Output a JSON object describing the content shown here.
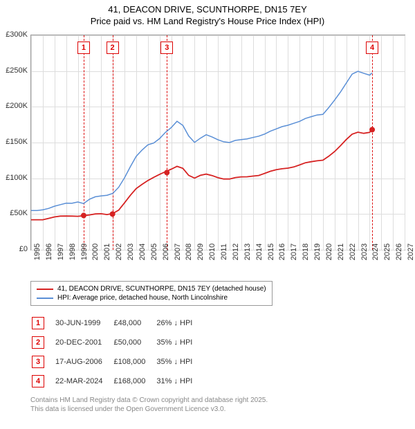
{
  "title_line1": "41, DEACON DRIVE, SCUNTHORPE, DN15 7EY",
  "title_line2": "Price paid vs. HM Land Registry's House Price Index (HPI)",
  "chart": {
    "type": "line",
    "x_min": 1995,
    "x_max": 2027,
    "y_min": 0,
    "y_max": 300000,
    "y_ticks": [
      0,
      50000,
      100000,
      150000,
      200000,
      250000,
      300000
    ],
    "y_tick_labels": [
      "£0",
      "£50K",
      "£100K",
      "£150K",
      "£200K",
      "£250K",
      "£300K"
    ],
    "x_ticks": [
      1995,
      1996,
      1997,
      1998,
      1999,
      2000,
      2001,
      2002,
      2003,
      2004,
      2005,
      2006,
      2007,
      2008,
      2009,
      2010,
      2011,
      2012,
      2013,
      2014,
      2015,
      2016,
      2017,
      2018,
      2019,
      2020,
      2021,
      2022,
      2023,
      2024,
      2025,
      2026,
      2027
    ],
    "grid_color": "#dddddd",
    "background_color": "#ffffff",
    "border_color": "#999999",
    "series": [
      {
        "name": "hpi",
        "label": "HPI: Average price, detached house, North Lincolnshire",
        "color": "#5a8fd6",
        "width": 1.5,
        "points": [
          [
            1995.0,
            55000
          ],
          [
            1995.5,
            56000
          ],
          [
            1996.0,
            57000
          ],
          [
            1996.5,
            58000
          ],
          [
            1997.0,
            60000
          ],
          [
            1997.5,
            62000
          ],
          [
            1998.0,
            65000
          ],
          [
            1998.5,
            66000
          ],
          [
            1999.0,
            68000
          ],
          [
            1999.5,
            65000
          ],
          [
            2000.0,
            70000
          ],
          [
            2000.5,
            73000
          ],
          [
            2001.0,
            75000
          ],
          [
            2001.5,
            77000
          ],
          [
            2002.0,
            80000
          ],
          [
            2002.5,
            88000
          ],
          [
            2003.0,
            100000
          ],
          [
            2003.5,
            115000
          ],
          [
            2004.0,
            130000
          ],
          [
            2004.5,
            140000
          ],
          [
            2005.0,
            148000
          ],
          [
            2005.5,
            150000
          ],
          [
            2006.0,
            155000
          ],
          [
            2006.5,
            163000
          ],
          [
            2007.0,
            170000
          ],
          [
            2007.5,
            180000
          ],
          [
            2008.0,
            175000
          ],
          [
            2008.5,
            160000
          ],
          [
            2009.0,
            150000
          ],
          [
            2009.5,
            155000
          ],
          [
            2010.0,
            160000
          ],
          [
            2010.5,
            158000
          ],
          [
            2011.0,
            155000
          ],
          [
            2011.5,
            152000
          ],
          [
            2012.0,
            150000
          ],
          [
            2012.5,
            152000
          ],
          [
            2013.0,
            153000
          ],
          [
            2013.5,
            155000
          ],
          [
            2014.0,
            158000
          ],
          [
            2014.5,
            160000
          ],
          [
            2015.0,
            162000
          ],
          [
            2015.5,
            165000
          ],
          [
            2016.0,
            168000
          ],
          [
            2016.5,
            172000
          ],
          [
            2017.0,
            175000
          ],
          [
            2017.5,
            178000
          ],
          [
            2018.0,
            180000
          ],
          [
            2018.5,
            183000
          ],
          [
            2019.0,
            185000
          ],
          [
            2019.5,
            188000
          ],
          [
            2020.0,
            190000
          ],
          [
            2020.5,
            200000
          ],
          [
            2021.0,
            210000
          ],
          [
            2021.5,
            220000
          ],
          [
            2022.0,
            232000
          ],
          [
            2022.5,
            245000
          ],
          [
            2023.0,
            250000
          ],
          [
            2023.5,
            248000
          ],
          [
            2024.0,
            245000
          ],
          [
            2024.2,
            247000
          ]
        ]
      },
      {
        "name": "price_paid",
        "label": "41, DEACON DRIVE, SCUNTHORPE, DN15 7EY (detached house)",
        "color": "#d62222",
        "width": 1.8,
        "points": [
          [
            1995.0,
            42000
          ],
          [
            1995.5,
            43000
          ],
          [
            1996.0,
            43000
          ],
          [
            1996.5,
            44000
          ],
          [
            1997.0,
            45000
          ],
          [
            1997.5,
            46000
          ],
          [
            1998.0,
            47000
          ],
          [
            1998.5,
            48000
          ],
          [
            1999.0,
            48000
          ],
          [
            1999.5,
            48000
          ],
          [
            2000.0,
            48000
          ],
          [
            2000.5,
            49000
          ],
          [
            2001.0,
            50000
          ],
          [
            2001.5,
            50000
          ],
          [
            2002.0,
            52000
          ],
          [
            2002.5,
            56000
          ],
          [
            2003.0,
            65000
          ],
          [
            2003.5,
            75000
          ],
          [
            2004.0,
            85000
          ],
          [
            2004.5,
            92000
          ],
          [
            2005.0,
            98000
          ],
          [
            2005.5,
            102000
          ],
          [
            2006.0,
            105000
          ],
          [
            2006.5,
            108000
          ],
          [
            2007.0,
            112000
          ],
          [
            2007.5,
            117000
          ],
          [
            2008.0,
            115000
          ],
          [
            2008.5,
            105000
          ],
          [
            2009.0,
            100000
          ],
          [
            2009.5,
            103000
          ],
          [
            2010.0,
            105000
          ],
          [
            2010.5,
            104000
          ],
          [
            2011.0,
            102000
          ],
          [
            2011.5,
            100000
          ],
          [
            2012.0,
            99000
          ],
          [
            2012.5,
            100000
          ],
          [
            2013.0,
            101000
          ],
          [
            2013.5,
            102000
          ],
          [
            2014.0,
            104000
          ],
          [
            2014.5,
            105000
          ],
          [
            2015.0,
            107000
          ],
          [
            2015.5,
            109000
          ],
          [
            2016.0,
            111000
          ],
          [
            2016.5,
            113000
          ],
          [
            2017.0,
            115000
          ],
          [
            2017.5,
            117000
          ],
          [
            2018.0,
            119000
          ],
          [
            2018.5,
            121000
          ],
          [
            2019.0,
            122000
          ],
          [
            2019.5,
            124000
          ],
          [
            2020.0,
            126000
          ],
          [
            2020.5,
            132000
          ],
          [
            2021.0,
            138000
          ],
          [
            2021.5,
            145000
          ],
          [
            2022.0,
            153000
          ],
          [
            2022.5,
            161000
          ],
          [
            2023.0,
            165000
          ],
          [
            2023.5,
            164000
          ],
          [
            2024.0,
            165000
          ],
          [
            2024.2,
            168000
          ]
        ],
        "markers": [
          [
            1999.5,
            48000
          ],
          [
            2001.97,
            50000
          ],
          [
            2006.63,
            108000
          ],
          [
            2024.22,
            168000
          ]
        ]
      }
    ],
    "event_lines": [
      {
        "num": "1",
        "x": 1999.5
      },
      {
        "num": "2",
        "x": 2001.97
      },
      {
        "num": "3",
        "x": 2006.63
      },
      {
        "num": "4",
        "x": 2024.22
      }
    ]
  },
  "legend": {
    "items": [
      {
        "color": "#d62222",
        "label": "41, DEACON DRIVE, SCUNTHORPE, DN15 7EY (detached house)"
      },
      {
        "color": "#5a8fd6",
        "label": "HPI: Average price, detached house, North Lincolnshire"
      }
    ]
  },
  "events_table": {
    "rows": [
      {
        "num": "1",
        "date": "30-JUN-1999",
        "price": "£48,000",
        "diff": "26% ↓ HPI"
      },
      {
        "num": "2",
        "date": "20-DEC-2001",
        "price": "£50,000",
        "diff": "35% ↓ HPI"
      },
      {
        "num": "3",
        "date": "17-AUG-2006",
        "price": "£108,000",
        "diff": "35% ↓ HPI"
      },
      {
        "num": "4",
        "date": "22-MAR-2024",
        "price": "£168,000",
        "diff": "31% ↓ HPI"
      }
    ]
  },
  "footer_line1": "Contains HM Land Registry data © Crown copyright and database right 2025.",
  "footer_line2": "This data is licensed under the Open Government Licence v3.0."
}
